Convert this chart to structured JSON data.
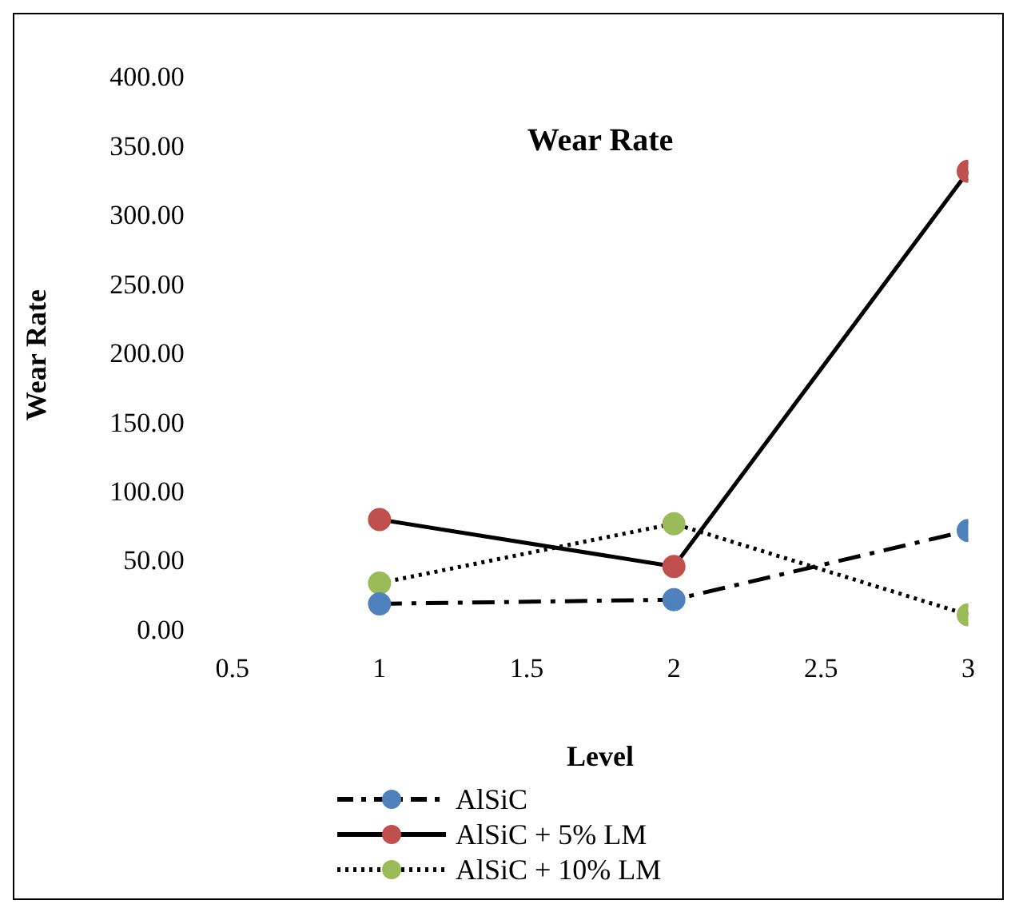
{
  "chart_data": {
    "type": "line",
    "title": "Wear Rate",
    "xlabel": "Level",
    "ylabel": "Wear Rate",
    "x": [
      1,
      2,
      3
    ],
    "series": [
      {
        "name": "AlSiC",
        "color": "#4f81bd",
        "values": [
          20,
          23,
          73
        ],
        "line_style": "dashed"
      },
      {
        "name": "AlSiC + 5% LM",
        "color": "#c0504d",
        "values": [
          81,
          47,
          333
        ],
        "line_style": "solid"
      },
      {
        "name": "AlSiC + 10% LM",
        "color": "#9bbb59",
        "values": [
          35,
          78,
          12
        ],
        "line_style": "dotted"
      }
    ],
    "xlim": [
      0.5,
      3
    ],
    "xticks": [
      0.5,
      1,
      1.5,
      2,
      2.5,
      3
    ],
    "ylim": [
      0,
      400
    ],
    "yticks": [
      {
        "value": 0,
        "label": "0.00"
      },
      {
        "value": 50,
        "label": "50.00"
      },
      {
        "value": 100,
        "label": "100.00"
      },
      {
        "value": 150,
        "label": "150.00"
      },
      {
        "value": 200,
        "label": "200.00"
      },
      {
        "value": 250,
        "label": "250.00"
      },
      {
        "value": 300,
        "label": "300.00"
      },
      {
        "value": 350,
        "label": "350.00"
      },
      {
        "value": 400,
        "label": "400.00"
      }
    ],
    "grid": false,
    "legend": "bottom",
    "marker": "circle"
  }
}
